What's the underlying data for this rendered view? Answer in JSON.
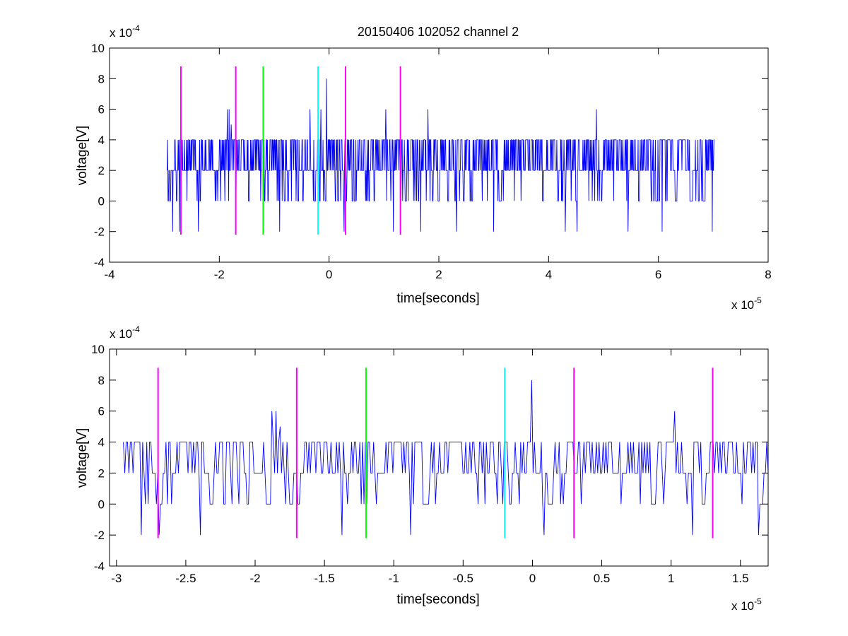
{
  "chart_data": [
    {
      "type": "line",
      "title": "20150406 102052 channel 2",
      "xlabel": "time[seconds]",
      "ylabel": "voltage[V]",
      "x_multiplier": {
        "base": "x 10",
        "exp": "-5"
      },
      "y_multiplier": {
        "base": "x 10",
        "exp": "-4"
      },
      "xlim": [
        -4,
        8
      ],
      "ylim": [
        -4,
        10
      ],
      "xticks": [
        -4,
        -2,
        0,
        2,
        4,
        6,
        8
      ],
      "xtick_labels": [
        "-4",
        "-2",
        "0",
        "2",
        "4",
        "6",
        "8"
      ],
      "yticks": [
        -4,
        -2,
        0,
        2,
        4,
        6,
        8,
        10
      ],
      "ytick_labels": [
        "-4",
        "-2",
        "0",
        "2",
        "4",
        "6",
        "8",
        "10"
      ],
      "grid": false,
      "signal": {
        "color": "#0000ff",
        "x_range": [
          -2.95,
          7.02
        ],
        "baseline": 2,
        "peaks": [
          [
            -1.85,
            6
          ],
          [
            -1.82,
            6
          ],
          [
            -1.78,
            5
          ],
          [
            -0.35,
            6
          ],
          [
            -0.15,
            6
          ],
          [
            -0.05,
            8
          ],
          [
            1.03,
            6
          ],
          [
            1.8,
            6
          ],
          [
            4.87,
            6
          ]
        ],
        "dips": [
          [
            -2.85,
            -2
          ],
          [
            -2.73,
            -2
          ],
          [
            -2.38,
            -2
          ],
          [
            -1.7,
            -2
          ],
          [
            -0.9,
            -2
          ],
          [
            0.27,
            -2
          ],
          [
            1.17,
            -2
          ],
          [
            1.67,
            -2
          ],
          [
            2.32,
            -2
          ],
          [
            3.0,
            -2
          ],
          [
            4.3,
            -2
          ],
          [
            4.52,
            -2
          ],
          [
            5.45,
            -2
          ],
          [
            6.07,
            -2
          ],
          [
            6.98,
            -2
          ]
        ]
      },
      "markers": [
        {
          "x": -2.7,
          "color": "#ff00ff"
        },
        {
          "x": -1.7,
          "color": "#ff00ff"
        },
        {
          "x": -1.2,
          "color": "#00ff00"
        },
        {
          "x": -0.2,
          "color": "#00ffff"
        },
        {
          "x": 0.3,
          "color": "#ff00ff"
        },
        {
          "x": 1.3,
          "color": "#ff00ff"
        }
      ],
      "marker_range": [
        -2.2,
        8.8
      ]
    },
    {
      "type": "line",
      "title": "",
      "xlabel": "time[seconds]",
      "ylabel": "voltage[V]",
      "x_multiplier": {
        "base": "x 10",
        "exp": "-5"
      },
      "y_multiplier": {
        "base": "x 10",
        "exp": "-4"
      },
      "xlim": [
        -3.05,
        1.7
      ],
      "ylim": [
        -4,
        10
      ],
      "xticks": [
        -3,
        -2.5,
        -2,
        -1.5,
        -1,
        -0.5,
        0,
        0.5,
        1,
        1.5
      ],
      "xtick_labels": [
        "-3",
        "-2.5",
        "-2",
        "-1.5",
        "-1",
        "-0.5",
        "0",
        "0.5",
        "1",
        "1.5"
      ],
      "yticks": [
        -4,
        -2,
        0,
        2,
        4,
        6,
        8,
        10
      ],
      "ytick_labels": [
        "-4",
        "-2",
        "0",
        "2",
        "4",
        "6",
        "8",
        "10"
      ],
      "grid": false,
      "signal": {
        "color": "#0000ff",
        "x_range": [
          -2.95,
          1.7
        ],
        "baseline": 2,
        "peaks": [
          [
            -1.88,
            6
          ],
          [
            -1.85,
            6
          ],
          [
            -1.82,
            5
          ],
          [
            -0.01,
            8
          ],
          [
            1.03,
            6
          ]
        ],
        "dips": [
          [
            -2.82,
            -2
          ],
          [
            -2.69,
            -2
          ],
          [
            -2.39,
            -2
          ],
          [
            -1.37,
            -2
          ],
          [
            -0.88,
            -2
          ],
          [
            0.08,
            -2
          ],
          [
            1.15,
            -2
          ],
          [
            1.63,
            -2
          ]
        ]
      },
      "markers": [
        {
          "x": -2.7,
          "color": "#ff00ff"
        },
        {
          "x": -1.7,
          "color": "#ff00ff"
        },
        {
          "x": -1.2,
          "color": "#00ff00"
        },
        {
          "x": -0.2,
          "color": "#00ffff"
        },
        {
          "x": 0.3,
          "color": "#ff00ff"
        },
        {
          "x": 1.3,
          "color": "#ff00ff"
        }
      ],
      "marker_range": [
        -2.2,
        8.8
      ]
    }
  ]
}
